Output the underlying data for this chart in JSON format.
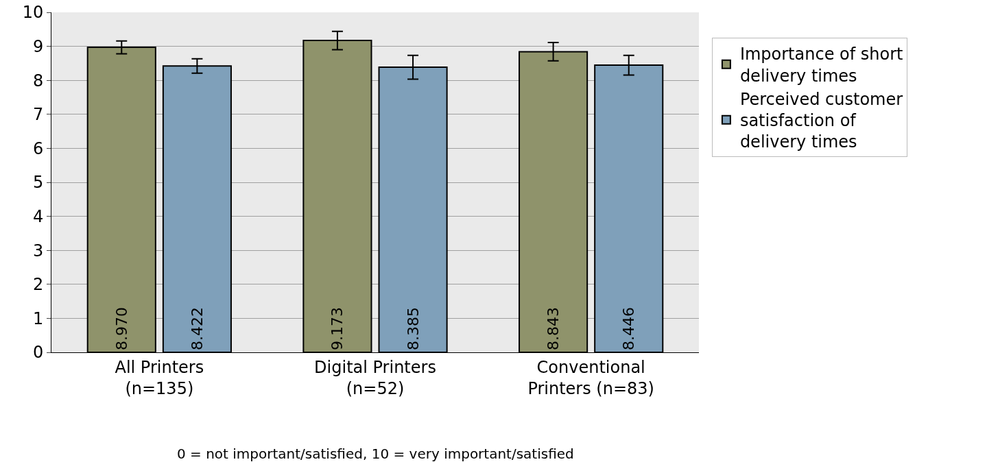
{
  "chart_data": {
    "type": "bar",
    "categories": [
      "All Printers\n(n=135)",
      "Digital Printers\n(n=52)",
      "Conventional\nPrinters (n=83)"
    ],
    "series": [
      {
        "name": "Importance of short\ndelivery times",
        "color": "#8f936b",
        "values": [
          8.97,
          9.173,
          8.843
        ],
        "value_labels": [
          "8.970",
          "9.173",
          "8.843"
        ],
        "errors": [
          0.19,
          0.27,
          0.27
        ]
      },
      {
        "name": "Perceived customer\nsatisfaction of\ndelivery times",
        "color": "#7fa0ba",
        "values": [
          8.422,
          8.385,
          8.446
        ],
        "value_labels": [
          "8.422",
          "8.385",
          "8.446"
        ],
        "errors": [
          0.21,
          0.35,
          0.29
        ]
      }
    ],
    "ylim": [
      0,
      10
    ],
    "yticks": [
      0,
      1,
      2,
      3,
      4,
      5,
      6,
      7,
      8,
      9,
      10
    ],
    "grid": "y",
    "legend": "right",
    "annotations": [
      "0 = not important/satisfied, 10 = very important/satisfied"
    ]
  }
}
